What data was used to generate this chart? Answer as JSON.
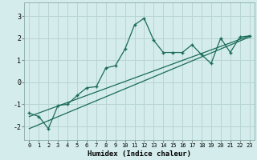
{
  "xlabel": "Humidex (Indice chaleur)",
  "bg_color": "#d4ecec",
  "grid_color": "#b8d4d4",
  "line_color": "#1a6b5a",
  "xlim": [
    -0.5,
    23.5
  ],
  "ylim": [
    -2.6,
    3.6
  ],
  "yticks": [
    -2,
    -1,
    0,
    1,
    2,
    3
  ],
  "xticks": [
    0,
    1,
    2,
    3,
    4,
    5,
    6,
    7,
    8,
    9,
    10,
    11,
    12,
    13,
    14,
    15,
    16,
    17,
    18,
    19,
    20,
    21,
    22,
    23
  ],
  "curve1_x": [
    0,
    1,
    2,
    3,
    4,
    5,
    6,
    7,
    8,
    9,
    10,
    11,
    12,
    13,
    14,
    15,
    16,
    17,
    18,
    19,
    20,
    21,
    22,
    23
  ],
  "curve1_y": [
    -1.4,
    -1.55,
    -2.1,
    -1.05,
    -1.0,
    -0.6,
    -0.25,
    -0.2,
    0.65,
    0.75,
    1.5,
    2.6,
    2.9,
    1.9,
    1.35,
    1.35,
    1.35,
    1.7,
    1.25,
    0.85,
    2.0,
    1.35,
    2.05,
    2.1
  ],
  "line1_x": [
    0,
    23
  ],
  "line1_y": [
    -1.55,
    2.1
  ],
  "line2_x": [
    0,
    23
  ],
  "line2_y": [
    -2.1,
    2.05
  ]
}
